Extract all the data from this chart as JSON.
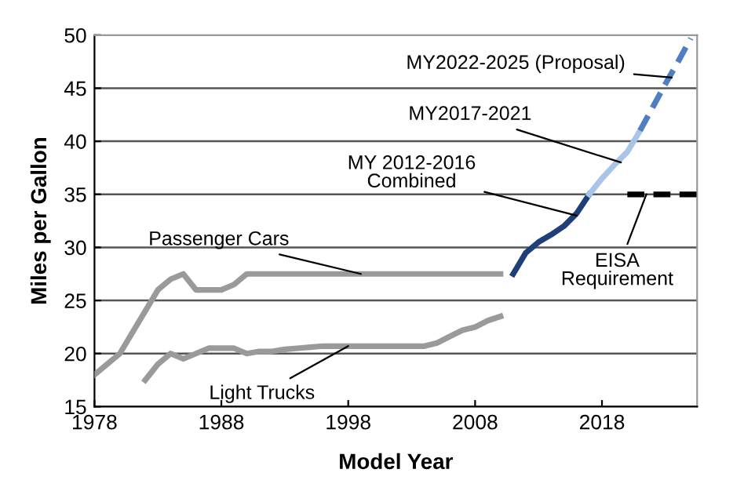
{
  "chart_data": {
    "type": "line",
    "xlabel": "Model Year",
    "ylabel": "Miles per Gallon",
    "xlim": [
      1978,
      2025.5
    ],
    "xticks": [
      1978,
      1988,
      1998,
      2008,
      2018
    ],
    "ylim": [
      15,
      50
    ],
    "yticks": [
      15,
      20,
      25,
      30,
      35,
      40,
      45,
      50
    ],
    "grid": "y",
    "marker": "none",
    "line_style": "solid",
    "series": [
      {
        "color": "#9a9a9a",
        "x": [
          1978,
          1979,
          1980,
          1981,
          1982,
          1983,
          1984,
          1985,
          1986,
          1987,
          1988,
          1989,
          1990,
          2000,
          2010
        ],
        "values": [
          18,
          19,
          20,
          22,
          24,
          26,
          27,
          27.5,
          26,
          26,
          26,
          26.5,
          27.5,
          27.5,
          27.5
        ]
      },
      {
        "color": "#9a9a9a",
        "x": [
          1982,
          1983,
          1984,
          1985,
          1986,
          1987,
          1988,
          1989,
          1990,
          1991,
          1992,
          1993,
          1994,
          1995,
          1996,
          2004,
          2005,
          2006,
          2007,
          2008,
          2009,
          2010
        ],
        "values": [
          17.5,
          19,
          20,
          19.5,
          20,
          20.5,
          20.5,
          20.5,
          20,
          20.2,
          20.2,
          20.4,
          20.5,
          20.6,
          20.7,
          20.7,
          21,
          21.6,
          22.2,
          22.5,
          23.1,
          23.5
        ]
      },
      {
        "color": "#1f3f7a",
        "x": [
          2011,
          2012,
          2013,
          2014,
          2015,
          2016,
          2017
        ],
        "values": [
          27.5,
          29.5,
          30.5,
          31.2,
          32,
          33.2,
          35
        ]
      },
      {
        "color": "#aac4e8",
        "x": [
          2017,
          2018,
          2019,
          2020,
          2021
        ],
        "values": [
          35,
          36.5,
          37.8,
          39,
          41
        ]
      },
      {
        "color": "#4f7fbf",
        "line_style": "dashed",
        "x": [
          2021,
          2022,
          2023,
          2024,
          2025
        ],
        "values": [
          41,
          43.2,
          45.4,
          47.5,
          49.7
        ]
      },
      {
        "color": "#000000",
        "line_style": "dashed",
        "x": [
          2020,
          2025.5
        ],
        "values": [
          35,
          35
        ]
      }
    ],
    "annotations": [
      {
        "text": "MY2022-2025 (Proposal)",
        "x": 2023.5,
        "y": 46
      },
      {
        "text": "MY2017-2021",
        "x": 2019.5,
        "y": 38
      },
      {
        "text": "MY 2012-2016\nCombined",
        "x": 2016,
        "y": 33
      },
      {
        "text": "EISA\nRequirement",
        "x": 2021.5,
        "y": 35
      },
      {
        "text": "Passenger Cars",
        "x": 1999,
        "y": 27.5
      },
      {
        "text": "Light Trucks",
        "x": 1998,
        "y": 20.7
      }
    ]
  }
}
